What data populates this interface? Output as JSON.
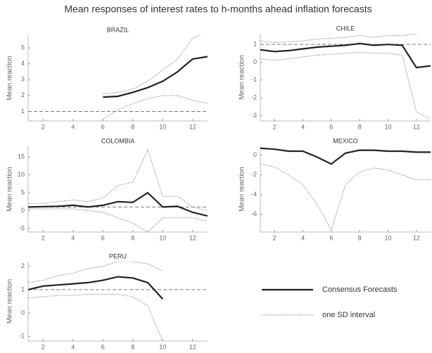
{
  "title": "Mean responses of interest rates to h-months ahead inflation forecasts",
  "chart_data": [
    {
      "type": "line",
      "title": "BRAZIL",
      "ylabel": "Mean reaction",
      "x": [
        1,
        2,
        3,
        4,
        5,
        6,
        7,
        8,
        9,
        10,
        11,
        12,
        13
      ],
      "xlim": [
        1,
        13
      ],
      "xticks": [
        2,
        4,
        6,
        8,
        10,
        12
      ],
      "ylim": [
        0.4,
        5.8
      ],
      "yticks": [
        1,
        2,
        3,
        4,
        5
      ],
      "hline": 1,
      "series": [
        {
          "name": "Consensus Forecasts",
          "color": "#222222",
          "style": "solid",
          "values": [
            null,
            null,
            null,
            null,
            null,
            1.9,
            1.95,
            2.2,
            2.5,
            2.9,
            3.5,
            4.3,
            4.45
          ]
        },
        {
          "name": "one SD interval",
          "color": "#9a9a9a",
          "style": "dotted",
          "values": [
            null,
            null,
            null,
            null,
            null,
            2.1,
            2.2,
            2.4,
            2.9,
            3.6,
            4.3,
            5.6,
            6.0
          ]
        },
        {
          "name": "one SD interval",
          "color": "#9a9a9a",
          "style": "dotted",
          "values": [
            null,
            null,
            null,
            null,
            null,
            0.5,
            1.1,
            1.5,
            1.8,
            2.0,
            2.0,
            1.7,
            1.5
          ]
        }
      ]
    },
    {
      "type": "line",
      "title": "CHILE",
      "ylabel": "Mean reaction",
      "x": [
        1,
        2,
        3,
        4,
        5,
        6,
        7,
        8,
        9,
        10,
        11,
        12,
        13
      ],
      "xlim": [
        1,
        13
      ],
      "xticks": [
        2,
        4,
        6,
        8,
        10,
        12
      ],
      "ylim": [
        -3.3,
        1.6
      ],
      "yticks": [
        -3,
        -2,
        -1,
        0,
        1
      ],
      "hline": 1,
      "series": [
        {
          "name": "Consensus Forecasts",
          "color": "#222222",
          "style": "solid",
          "values": [
            0.7,
            0.6,
            0.65,
            0.75,
            0.85,
            0.9,
            0.95,
            1.05,
            0.95,
            1.0,
            0.95,
            -0.3,
            -0.2
          ]
        },
        {
          "name": "one SD interval",
          "color": "#9a9a9a",
          "style": "dotted",
          "values": [
            1.2,
            1.1,
            1.15,
            1.2,
            1.3,
            1.35,
            1.4,
            1.5,
            1.4,
            1.5,
            1.5,
            1.6,
            1.7
          ]
        },
        {
          "name": "one SD interval",
          "color": "#9a9a9a",
          "style": "dotted",
          "values": [
            0.2,
            0.1,
            0.2,
            0.3,
            0.4,
            0.45,
            0.5,
            0.55,
            0.5,
            0.5,
            0.4,
            -2.8,
            -3.2
          ]
        }
      ]
    },
    {
      "type": "line",
      "title": "COLOMBIA",
      "ylabel": "Mean reaction",
      "x": [
        1,
        2,
        3,
        4,
        5,
        6,
        7,
        8,
        9,
        10,
        11,
        12,
        13
      ],
      "xlim": [
        1,
        13
      ],
      "xticks": [
        2,
        4,
        6,
        8,
        10,
        12
      ],
      "ylim": [
        -6,
        18
      ],
      "yticks": [
        -5,
        0,
        5,
        10,
        15
      ],
      "hline": 1,
      "series": [
        {
          "name": "Consensus Forecasts",
          "color": "#222222",
          "style": "solid",
          "values": [
            1,
            1.1,
            1.2,
            1.5,
            1.0,
            1.5,
            2.5,
            2.3,
            5,
            1,
            1.2,
            -0.5,
            -1.5
          ]
        },
        {
          "name": "one SD interval",
          "color": "#9a9a9a",
          "style": "dotted",
          "values": [
            2,
            2,
            2.5,
            3,
            2.5,
            3.5,
            7,
            8,
            17,
            4,
            4,
            1,
            0
          ]
        },
        {
          "name": "one SD interval",
          "color": "#9a9a9a",
          "style": "dotted",
          "values": [
            0.5,
            0.5,
            0.5,
            0.5,
            0,
            -0.5,
            -2,
            -3.5,
            -6,
            -2,
            -2,
            -2,
            -3
          ]
        }
      ]
    },
    {
      "type": "line",
      "title": "MEXICO",
      "ylabel": "Mean reaction",
      "x": [
        1,
        2,
        3,
        4,
        5,
        6,
        7,
        8,
        9,
        10,
        11,
        12,
        13
      ],
      "xlim": [
        1,
        13
      ],
      "xticks": [
        2,
        4,
        6,
        8,
        10,
        12
      ],
      "ylim": [
        -7.8,
        0.9
      ],
      "yticks": [
        -6,
        -4,
        -2,
        0
      ],
      "series": [
        {
          "name": "Consensus Forecasts",
          "color": "#222222",
          "style": "solid",
          "values": [
            0.7,
            0.6,
            0.4,
            0.4,
            -0.2,
            -0.9,
            0.2,
            0.5,
            0.5,
            0.4,
            0.4,
            0.3,
            0.3
          ]
        },
        {
          "name": "one SD interval",
          "color": "#9a9a9a",
          "style": "dotted",
          "values": [
            1.0,
            1.0,
            1.0,
            1.0,
            1.0,
            1.0,
            1.0,
            1.0,
            1.0,
            1.0,
            1.0,
            1.0,
            1.0
          ]
        },
        {
          "name": "one SD interval",
          "color": "#9a9a9a",
          "style": "dotted",
          "values": [
            -0.9,
            -1.2,
            -2,
            -3,
            -5,
            -7.6,
            -3,
            -1.7,
            -1.3,
            -1.5,
            -2,
            -2.5,
            -2.5
          ]
        }
      ]
    },
    {
      "type": "line",
      "title": "PERU",
      "ylabel": "Mean reaction",
      "x": [
        1,
        2,
        3,
        4,
        5,
        6,
        7,
        8,
        9,
        10,
        11,
        12,
        13
      ],
      "xlim": [
        1,
        13
      ],
      "xticks": [
        2,
        4,
        6,
        8,
        10,
        12
      ],
      "ylim": [
        -1.2,
        2.2
      ],
      "yticks": [
        -1,
        0,
        1,
        2
      ],
      "hline": 1,
      "series": [
        {
          "name": "Consensus Forecasts",
          "color": "#222222",
          "style": "solid",
          "values": [
            1.0,
            1.15,
            1.2,
            1.25,
            1.3,
            1.4,
            1.55,
            1.5,
            1.3,
            0.6,
            null,
            null,
            null
          ]
        },
        {
          "name": "one SD interval",
          "color": "#9a9a9a",
          "style": "dotted",
          "values": [
            1.3,
            1.4,
            1.6,
            1.7,
            1.9,
            2.0,
            2.2,
            2.2,
            2.1,
            1.8,
            null,
            null,
            null
          ]
        },
        {
          "name": "one SD interval",
          "color": "#9a9a9a",
          "style": "dotted",
          "values": [
            0.65,
            0.7,
            0.75,
            0.75,
            0.8,
            0.8,
            0.8,
            0.7,
            0.3,
            -1.2,
            null,
            null,
            null
          ]
        }
      ]
    }
  ]
}
